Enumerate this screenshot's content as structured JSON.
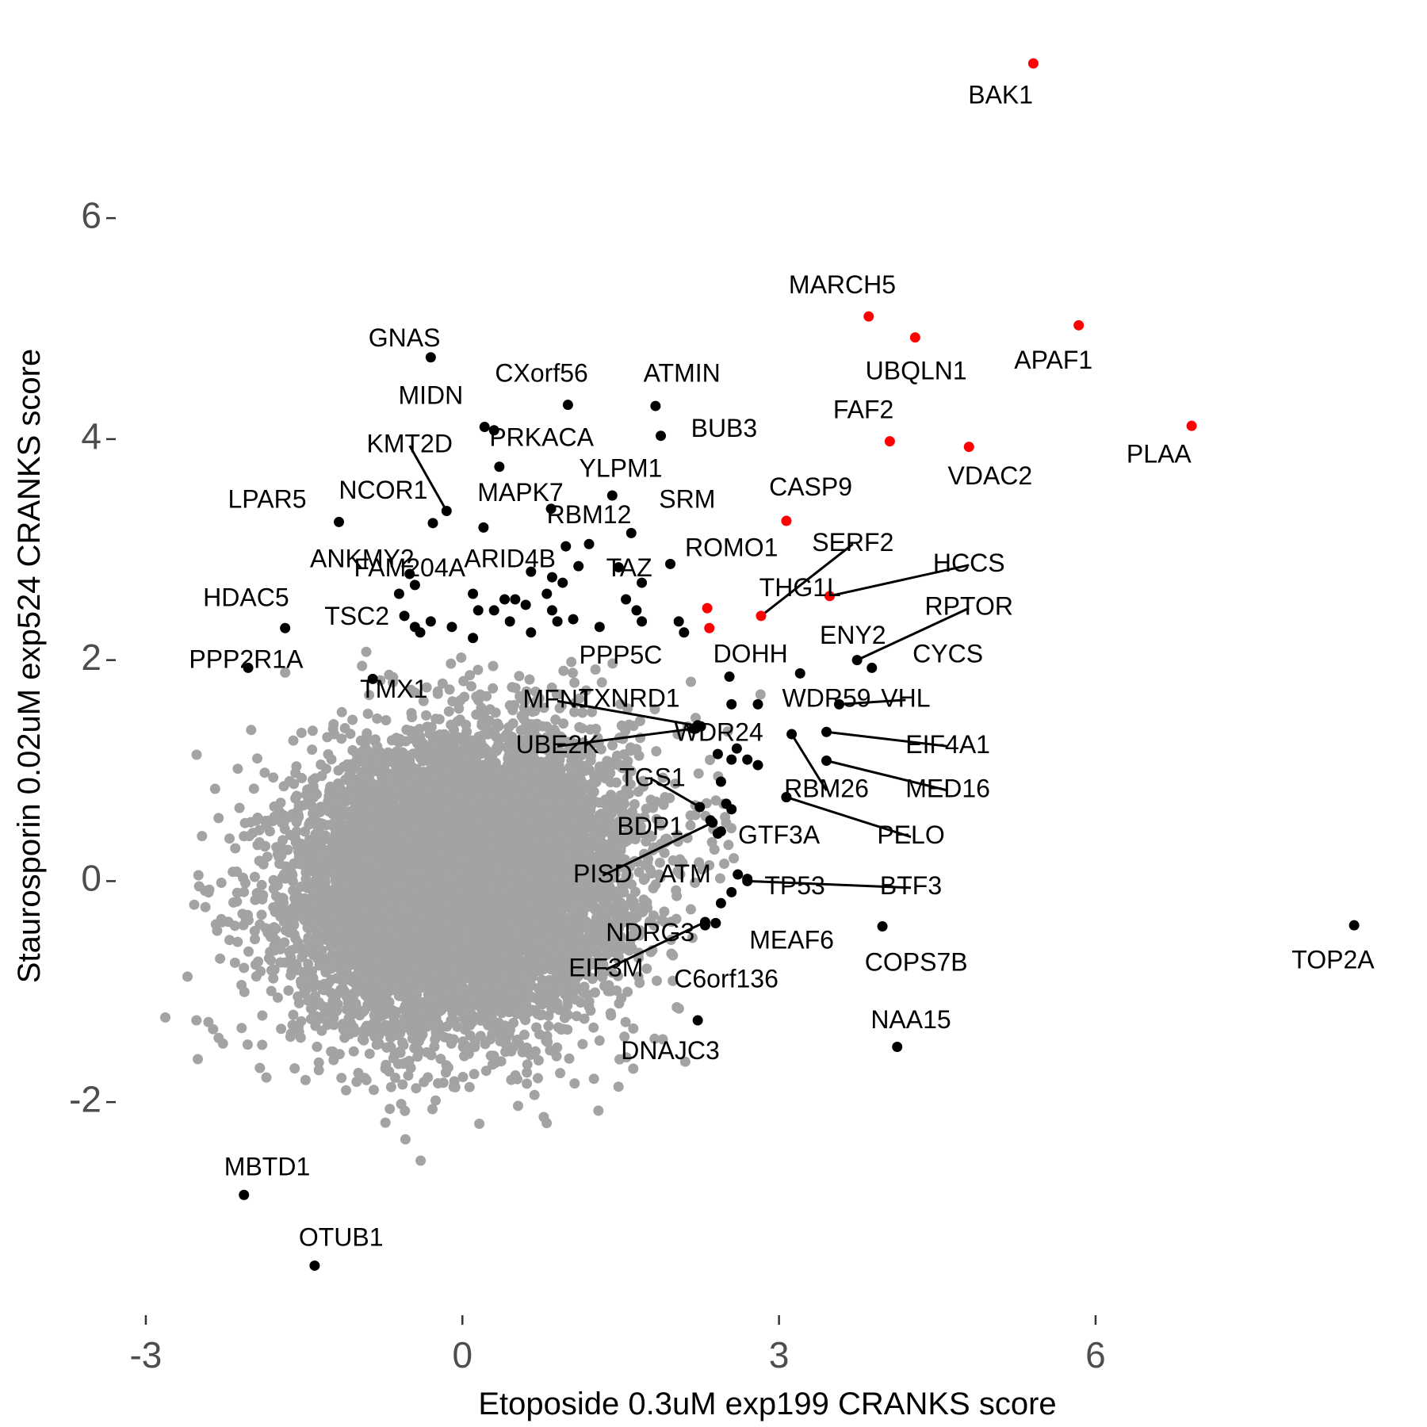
{
  "chart_data": {
    "type": "scatter",
    "title": "",
    "xlabel": "Etoposide 0.3uM exp199 CRANKS score",
    "ylabel": "Staurosporin 0.02uM exp524 CRANKS score",
    "xlim": [
      -3.3,
      8.9
    ],
    "ylim": [
      -3.9,
      7.4
    ],
    "x_ticks": [
      -3,
      0,
      3,
      6
    ],
    "x_tick_labels": [
      "-3",
      "0",
      "3",
      "6"
    ],
    "y_ticks": [
      -2,
      0,
      2,
      4,
      6
    ],
    "y_tick_labels": [
      "-2",
      "0",
      "2",
      "4",
      "6"
    ],
    "grid": false,
    "legend": "none",
    "colors": {
      "background_points": "#a3a3a3",
      "highlight": "#000000",
      "top_hits": "#ff0000"
    },
    "background_cloud": {
      "n_points": 9000,
      "center": [
        0,
        0
      ],
      "sd": [
        0.78,
        0.65
      ],
      "correlation": 0.12
    },
    "labeled_points": [
      {
        "label": "BAK1",
        "x": 5.41,
        "y": 7.4,
        "color": "red",
        "lx": 5.1,
        "ly": 7.1
      },
      {
        "label": "MARCH5",
        "x": 3.85,
        "y": 5.11,
        "color": "red",
        "lx": 3.6,
        "ly": 5.38
      },
      {
        "label": "UBQLN1",
        "x": 4.29,
        "y": 4.92,
        "color": "red",
        "lx": 4.3,
        "ly": 4.6
      },
      {
        "label": "APAF1",
        "x": 5.84,
        "y": 5.03,
        "color": "red",
        "lx": 5.6,
        "ly": 4.7
      },
      {
        "label": "FAF2",
        "x": 4.05,
        "y": 3.98,
        "color": "red",
        "lx": 3.8,
        "ly": 4.25
      },
      {
        "label": "VDAC2",
        "x": 4.8,
        "y": 3.93,
        "color": "red",
        "lx": 5.0,
        "ly": 3.65
      },
      {
        "label": "PLAA",
        "x": 6.91,
        "y": 4.12,
        "color": "red",
        "lx": 6.6,
        "ly": 3.85
      },
      {
        "label": "CASP9",
        "x": 3.07,
        "y": 3.26,
        "color": "red",
        "lx": 3.3,
        "ly": 3.55
      },
      {
        "label": "SERF2",
        "x": 2.83,
        "y": 2.4,
        "color": "red",
        "lx": 3.7,
        "ly": 3.05,
        "line": true
      },
      {
        "label": "HCCS",
        "x": 3.48,
        "y": 2.58,
        "color": "red",
        "lx": 4.8,
        "ly": 2.86,
        "line": true
      },
      {
        "label": "THG1L",
        "x": 2.32,
        "y": 2.47,
        "color": "red",
        "lx": 3.2,
        "ly": 2.64
      },
      {
        "label": "ENY2",
        "x": 2.34,
        "y": 2.29,
        "color": "red",
        "lx": 3.7,
        "ly": 2.21
      },
      {
        "label": "GNAS",
        "x": -0.3,
        "y": 4.74,
        "color": "black",
        "lx": -0.55,
        "ly": 4.9
      },
      {
        "label": "MIDN",
        "x": 0.21,
        "y": 4.11,
        "color": "black",
        "lx": -0.3,
        "ly": 4.38
      },
      {
        "label": "CXorf56",
        "x": 1.0,
        "y": 4.31,
        "color": "black",
        "lx": 0.75,
        "ly": 4.58
      },
      {
        "label": "ATMIN",
        "x": 1.83,
        "y": 4.3,
        "color": "black",
        "lx": 2.08,
        "ly": 4.58
      },
      {
        "label": "BUB3",
        "x": 1.88,
        "y": 4.03,
        "color": "black",
        "lx": 2.48,
        "ly": 4.08
      },
      {
        "label": "PRKACA",
        "x": 0.3,
        "y": 4.08,
        "color": "black",
        "lx": 0.75,
        "ly": 4.0
      },
      {
        "label": "KMT2D",
        "x": -0.15,
        "y": 3.35,
        "color": "black",
        "lx": -0.5,
        "ly": 3.94,
        "line": true
      },
      {
        "label": "YLPM1",
        "x": 1.42,
        "y": 3.49,
        "color": "black",
        "lx": 1.5,
        "ly": 3.72
      },
      {
        "label": "MAPK7",
        "x": 0.35,
        "y": 3.75,
        "color": "black",
        "lx": 0.55,
        "ly": 3.5
      },
      {
        "label": "NCOR1",
        "x": -0.28,
        "y": 3.24,
        "color": "black",
        "lx": -0.75,
        "ly": 3.52
      },
      {
        "label": "SRM",
        "x": 0.84,
        "y": 3.37,
        "color": "black",
        "lx": 2.13,
        "ly": 3.44
      },
      {
        "label": "RBM12",
        "x": 1.6,
        "y": 3.15,
        "color": "black",
        "lx": 1.2,
        "ly": 3.3
      },
      {
        "label": "LPAR5",
        "x": -1.17,
        "y": 3.25,
        "color": "black",
        "lx": -1.85,
        "ly": 3.44
      },
      {
        "label": "ROMO1",
        "x": 1.97,
        "y": 2.87,
        "color": "black",
        "lx": 2.55,
        "ly": 3.0
      },
      {
        "label": "ANKMY2",
        "x": -0.5,
        "y": 2.78,
        "color": "black",
        "lx": -0.95,
        "ly": 2.9
      },
      {
        "label": "ARID4B",
        "x": 0.98,
        "y": 3.03,
        "color": "black",
        "lx": 0.45,
        "ly": 2.9
      },
      {
        "label": "FAM204A",
        "x": -0.45,
        "y": 2.68,
        "color": "black",
        "lx": -0.5,
        "ly": 2.82
      },
      {
        "label": "TAZ",
        "x": 1.48,
        "y": 2.84,
        "color": "black",
        "lx": 1.58,
        "ly": 2.82
      },
      {
        "label": "HDAC5",
        "x": -1.68,
        "y": 2.29,
        "color": "black",
        "lx": -2.05,
        "ly": 2.55
      },
      {
        "label": "TSC2",
        "x": -0.55,
        "y": 2.4,
        "color": "black",
        "lx": -1.0,
        "ly": 2.38
      },
      {
        "label": "PPP5C",
        "x": 1.05,
        "y": 2.37,
        "color": "black",
        "lx": 1.5,
        "ly": 2.03
      },
      {
        "label": "DOHH",
        "x": 2.53,
        "y": 1.85,
        "color": "black",
        "lx": 2.73,
        "ly": 2.04
      },
      {
        "label": "RPTOR",
        "x": 3.74,
        "y": 2.0,
        "color": "black",
        "lx": 4.8,
        "ly": 2.47,
        "line": true
      },
      {
        "label": "CYCS",
        "x": 3.88,
        "y": 1.93,
        "color": "black",
        "lx": 4.6,
        "ly": 2.04
      },
      {
        "label": "PPP2R1A",
        "x": -2.03,
        "y": 1.93,
        "color": "black",
        "lx": -2.05,
        "ly": 1.99
      },
      {
        "label": "TMX1",
        "x": -0.85,
        "y": 1.83,
        "color": "black",
        "lx": -0.65,
        "ly": 1.72
      },
      {
        "label": "MFN1",
        "x": 2.26,
        "y": 1.4,
        "color": "black",
        "lx": 0.9,
        "ly": 1.63,
        "line": true
      },
      {
        "label": "TXNRD1",
        "x": 2.23,
        "y": 1.41,
        "color": "black",
        "lx": 1.58,
        "ly": 1.64
      },
      {
        "label": "WDR59",
        "x": 3.2,
        "y": 1.88,
        "color": "black",
        "lx": 3.45,
        "ly": 1.64
      },
      {
        "label": "VHL",
        "x": 3.57,
        "y": 1.6,
        "color": "black",
        "lx": 4.2,
        "ly": 1.64,
        "line": true
      },
      {
        "label": "WDR24",
        "x": 2.21,
        "y": 1.38,
        "color": "black",
        "lx": 2.43,
        "ly": 1.33
      },
      {
        "label": "UBE2K",
        "x": 2.19,
        "y": 1.38,
        "color": "black",
        "lx": 0.9,
        "ly": 1.22,
        "line": true
      },
      {
        "label": "EIF4A1",
        "x": 3.45,
        "y": 1.35,
        "color": "black",
        "lx": 4.6,
        "ly": 1.22,
        "line": true
      },
      {
        "label": "TGS1",
        "x": 2.25,
        "y": 0.67,
        "color": "black",
        "lx": 1.8,
        "ly": 0.92,
        "line": true
      },
      {
        "label": "RBM26",
        "x": 3.12,
        "y": 1.33,
        "color": "black",
        "lx": 3.45,
        "ly": 0.82,
        "line": true
      },
      {
        "label": "MED16",
        "x": 3.45,
        "y": 1.09,
        "color": "black",
        "lx": 4.6,
        "ly": 0.82,
        "line": true
      },
      {
        "label": "BDP1",
        "x": 2.42,
        "y": 0.43,
        "color": "black",
        "lx": 1.78,
        "ly": 0.48
      },
      {
        "label": "GTF3A",
        "x": 3.07,
        "y": 0.76,
        "color": "black",
        "lx": 3.0,
        "ly": 0.4
      },
      {
        "label": "PELO",
        "x": 3.07,
        "y": 0.76,
        "color": "black",
        "lx": 4.25,
        "ly": 0.4,
        "line": true
      },
      {
        "label": "PISD",
        "x": 2.37,
        "y": 0.53,
        "color": "black",
        "lx": 1.33,
        "ly": 0.05,
        "line": true
      },
      {
        "label": "ATM",
        "x": 2.61,
        "y": 0.06,
        "color": "black",
        "lx": 2.11,
        "ly": 0.05
      },
      {
        "label": "TP53",
        "x": 2.7,
        "y": 0.02,
        "color": "black",
        "lx": 3.15,
        "ly": -0.06
      },
      {
        "label": "BTF3",
        "x": 2.7,
        "y": 0.0,
        "color": "black",
        "lx": 4.25,
        "ly": -0.06,
        "line": true
      },
      {
        "label": "NDRG3",
        "x": 2.4,
        "y": -0.38,
        "color": "black",
        "lx": 1.78,
        "ly": -0.48
      },
      {
        "label": "MEAF6",
        "x": 2.4,
        "y": -0.38,
        "color": "black",
        "lx": 3.12,
        "ly": -0.55
      },
      {
        "label": "EIF3M",
        "x": 2.3,
        "y": -0.37,
        "color": "black",
        "lx": 1.36,
        "ly": -0.8,
        "line": true
      },
      {
        "label": "C6orf136",
        "x": 2.3,
        "y": -0.4,
        "color": "black",
        "lx": 2.5,
        "ly": -0.9
      },
      {
        "label": "COPS7B",
        "x": 3.98,
        "y": -0.41,
        "color": "black",
        "lx": 4.3,
        "ly": -0.75
      },
      {
        "label": "TOP2A",
        "x": 8.45,
        "y": -0.4,
        "color": "black",
        "lx": 8.25,
        "ly": -0.73
      },
      {
        "label": "DNAJC3",
        "x": 2.23,
        "y": -1.26,
        "color": "black",
        "lx": 1.97,
        "ly": -1.55
      },
      {
        "label": "NAA15",
        "x": 4.12,
        "y": -1.5,
        "color": "black",
        "lx": 4.25,
        "ly": -1.27
      },
      {
        "label": "MBTD1",
        "x": -2.07,
        "y": -2.84,
        "color": "black",
        "lx": -1.85,
        "ly": -2.6
      },
      {
        "label": "OTUB1",
        "x": -1.4,
        "y": -3.48,
        "color": "black",
        "lx": -1.15,
        "ly": -3.24
      }
    ],
    "unlabeled_black_points": [
      [
        -0.6,
        2.6
      ],
      [
        -0.45,
        2.3
      ],
      [
        -0.3,
        2.35
      ],
      [
        -0.1,
        2.3
      ],
      [
        0.1,
        2.2
      ],
      [
        -0.4,
        2.25
      ],
      [
        0.1,
        2.6
      ],
      [
        0.15,
        2.45
      ],
      [
        0.3,
        2.45
      ],
      [
        0.4,
        2.55
      ],
      [
        0.5,
        2.55
      ],
      [
        0.6,
        2.5
      ],
      [
        0.65,
        2.25
      ],
      [
        0.8,
        2.6
      ],
      [
        0.85,
        2.75
      ],
      [
        0.95,
        2.7
      ],
      [
        1.2,
        3.05
      ],
      [
        1.1,
        2.85
      ],
      [
        0.85,
        2.45
      ],
      [
        0.9,
        2.35
      ],
      [
        0.45,
        2.35
      ],
      [
        0.2,
        3.2
      ],
      [
        0.65,
        2.8
      ],
      [
        1.7,
        2.7
      ],
      [
        1.55,
        2.55
      ],
      [
        1.65,
        2.45
      ],
      [
        1.7,
        2.35
      ],
      [
        2.05,
        2.35
      ],
      [
        2.1,
        2.25
      ],
      [
        1.3,
        2.3
      ],
      [
        2.55,
        1.6
      ],
      [
        2.8,
        1.6
      ],
      [
        2.42,
        1.15
      ],
      [
        2.55,
        1.1
      ],
      [
        2.6,
        1.2
      ],
      [
        2.7,
        1.1
      ],
      [
        2.8,
        1.05
      ],
      [
        2.5,
        0.7
      ],
      [
        2.55,
        0.65
      ],
      [
        2.35,
        0.55
      ],
      [
        2.45,
        0.9
      ],
      [
        2.45,
        0.45
      ],
      [
        2.55,
        -0.1
      ],
      [
        2.45,
        -0.2
      ]
    ]
  }
}
